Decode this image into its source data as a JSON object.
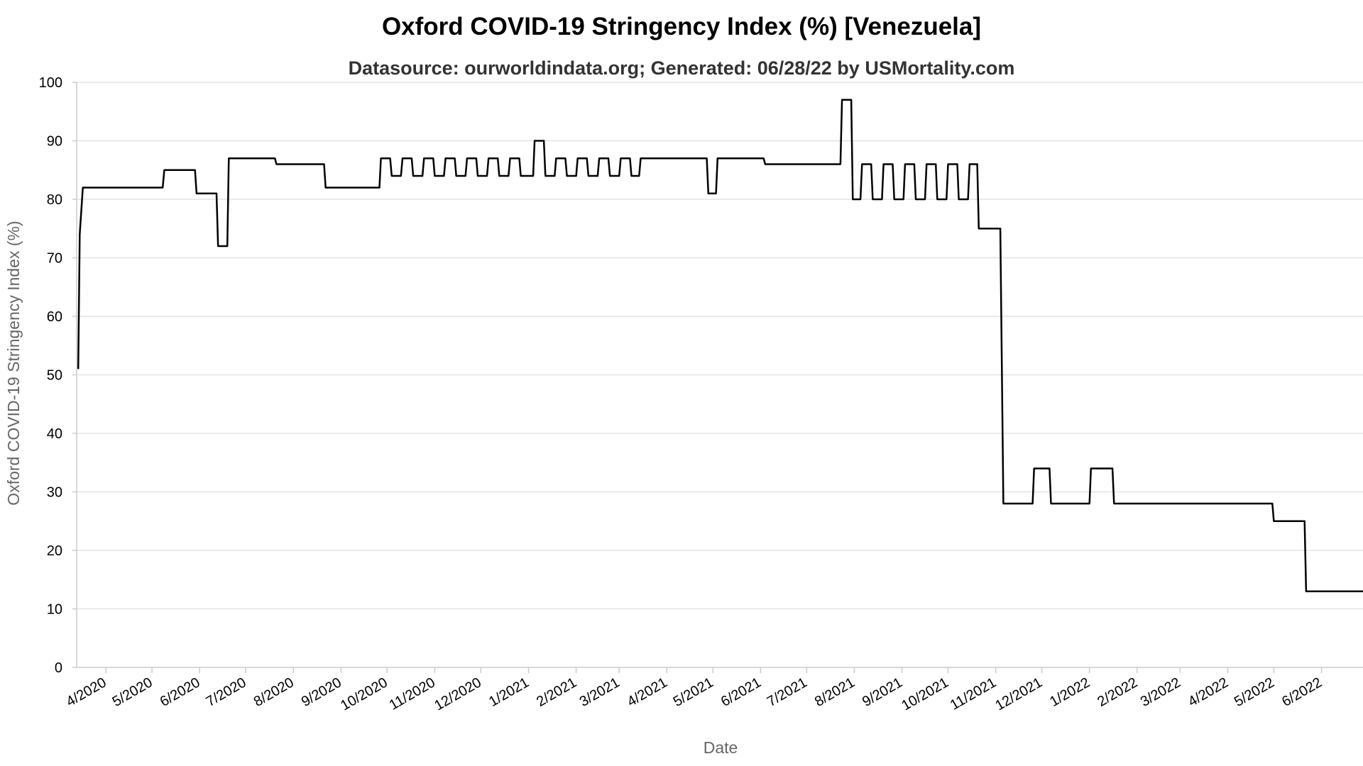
{
  "chart_data": {
    "type": "line",
    "title": "Oxford COVID-19 Stringency Index (%) [Venezuela]",
    "subtitle": "Datasource: ourworldindata.org; Generated: 06/28/22 by USMortality.com",
    "xlabel": "Date",
    "ylabel": "Oxford COVID-19 Stringency Index (%)",
    "ylim": [
      0,
      100
    ],
    "yticks": [
      0,
      10,
      20,
      30,
      40,
      50,
      60,
      70,
      80,
      90,
      100
    ],
    "xlim": [
      "2020-03-13",
      "2022-06-28"
    ],
    "xticks": [
      {
        "date": "2020-04-01",
        "label": "4/2020"
      },
      {
        "date": "2020-05-01",
        "label": "5/2020"
      },
      {
        "date": "2020-06-01",
        "label": "6/2020"
      },
      {
        "date": "2020-07-01",
        "label": "7/2020"
      },
      {
        "date": "2020-08-01",
        "label": "8/2020"
      },
      {
        "date": "2020-09-01",
        "label": "9/2020"
      },
      {
        "date": "2020-10-01",
        "label": "10/2020"
      },
      {
        "date": "2020-11-01",
        "label": "11/2020"
      },
      {
        "date": "2020-12-01",
        "label": "12/2020"
      },
      {
        "date": "2021-01-01",
        "label": "1/2021"
      },
      {
        "date": "2021-02-01",
        "label": "2/2021"
      },
      {
        "date": "2021-03-01",
        "label": "3/2021"
      },
      {
        "date": "2021-04-01",
        "label": "4/2021"
      },
      {
        "date": "2021-05-01",
        "label": "5/2021"
      },
      {
        "date": "2021-06-01",
        "label": "6/2021"
      },
      {
        "date": "2021-07-01",
        "label": "7/2021"
      },
      {
        "date": "2021-08-01",
        "label": "8/2021"
      },
      {
        "date": "2021-09-01",
        "label": "9/2021"
      },
      {
        "date": "2021-10-01",
        "label": "10/2021"
      },
      {
        "date": "2021-11-01",
        "label": "11/2021"
      },
      {
        "date": "2021-12-01",
        "label": "12/2021"
      },
      {
        "date": "2022-01-01",
        "label": "1/2022"
      },
      {
        "date": "2022-02-01",
        "label": "2/2022"
      },
      {
        "date": "2022-03-01",
        "label": "3/2022"
      },
      {
        "date": "2022-04-01",
        "label": "4/2022"
      },
      {
        "date": "2022-05-01",
        "label": "5/2022"
      },
      {
        "date": "2022-06-01",
        "label": "6/2022"
      }
    ],
    "grid": true,
    "series": [
      {
        "color": "#000000",
        "points": [
          [
            "2020-03-14",
            51
          ],
          [
            "2020-03-15",
            74
          ],
          [
            "2020-03-17",
            82
          ],
          [
            "2020-05-08",
            82
          ],
          [
            "2020-05-09",
            85
          ],
          [
            "2020-05-29",
            85
          ],
          [
            "2020-05-30",
            81
          ],
          [
            "2020-06-12",
            81
          ],
          [
            "2020-06-13",
            72
          ],
          [
            "2020-06-19",
            72
          ],
          [
            "2020-06-20",
            87
          ],
          [
            "2020-07-20",
            87
          ],
          [
            "2020-07-21",
            86
          ],
          [
            "2020-08-21",
            86
          ],
          [
            "2020-08-22",
            82
          ],
          [
            "2020-09-26",
            82
          ],
          [
            "2020-09-27",
            87
          ],
          [
            "2020-10-03",
            87
          ],
          [
            "2020-10-04",
            84
          ],
          [
            "2020-10-10",
            84
          ],
          [
            "2020-10-11",
            87
          ],
          [
            "2020-10-17",
            87
          ],
          [
            "2020-10-18",
            84
          ],
          [
            "2020-10-24",
            84
          ],
          [
            "2020-10-25",
            87
          ],
          [
            "2020-10-31",
            87
          ],
          [
            "2020-11-01",
            84
          ],
          [
            "2020-11-07",
            84
          ],
          [
            "2020-11-08",
            87
          ],
          [
            "2020-11-14",
            87
          ],
          [
            "2020-11-15",
            84
          ],
          [
            "2020-11-21",
            84
          ],
          [
            "2020-11-22",
            87
          ],
          [
            "2020-11-28",
            87
          ],
          [
            "2020-11-29",
            84
          ],
          [
            "2020-12-05",
            84
          ],
          [
            "2020-12-06",
            87
          ],
          [
            "2020-12-12",
            87
          ],
          [
            "2020-12-13",
            84
          ],
          [
            "2020-12-19",
            84
          ],
          [
            "2020-12-20",
            87
          ],
          [
            "2020-12-26",
            87
          ],
          [
            "2020-12-27",
            84
          ],
          [
            "2021-01-04",
            84
          ],
          [
            "2021-01-05",
            90
          ],
          [
            "2021-01-11",
            90
          ],
          [
            "2021-01-12",
            84
          ],
          [
            "2021-01-18",
            84
          ],
          [
            "2021-01-19",
            87
          ],
          [
            "2021-01-25",
            87
          ],
          [
            "2021-01-26",
            84
          ],
          [
            "2021-02-01",
            84
          ],
          [
            "2021-02-02",
            87
          ],
          [
            "2021-02-08",
            87
          ],
          [
            "2021-02-09",
            84
          ],
          [
            "2021-02-15",
            84
          ],
          [
            "2021-02-16",
            87
          ],
          [
            "2021-02-22",
            87
          ],
          [
            "2021-02-23",
            84
          ],
          [
            "2021-03-01",
            84
          ],
          [
            "2021-03-02",
            87
          ],
          [
            "2021-03-08",
            87
          ],
          [
            "2021-03-09",
            84
          ],
          [
            "2021-03-14",
            84
          ],
          [
            "2021-03-15",
            87
          ],
          [
            "2021-04-27",
            87
          ],
          [
            "2021-04-28",
            81
          ],
          [
            "2021-05-03",
            81
          ],
          [
            "2021-05-04",
            87
          ],
          [
            "2021-06-03",
            87
          ],
          [
            "2021-06-04",
            86
          ],
          [
            "2021-07-23",
            86
          ],
          [
            "2021-07-24",
            97
          ],
          [
            "2021-07-30",
            97
          ],
          [
            "2021-07-31",
            80
          ],
          [
            "2021-08-05",
            80
          ],
          [
            "2021-08-06",
            86
          ],
          [
            "2021-08-12",
            86
          ],
          [
            "2021-08-13",
            80
          ],
          [
            "2021-08-19",
            80
          ],
          [
            "2021-08-20",
            86
          ],
          [
            "2021-08-26",
            86
          ],
          [
            "2021-08-27",
            80
          ],
          [
            "2021-09-02",
            80
          ],
          [
            "2021-09-03",
            86
          ],
          [
            "2021-09-09",
            86
          ],
          [
            "2021-09-10",
            80
          ],
          [
            "2021-09-16",
            80
          ],
          [
            "2021-09-17",
            86
          ],
          [
            "2021-09-23",
            86
          ],
          [
            "2021-09-24",
            80
          ],
          [
            "2021-09-30",
            80
          ],
          [
            "2021-10-01",
            86
          ],
          [
            "2021-10-07",
            86
          ],
          [
            "2021-10-08",
            80
          ],
          [
            "2021-10-14",
            80
          ],
          [
            "2021-10-15",
            86
          ],
          [
            "2021-10-20",
            86
          ],
          [
            "2021-10-21",
            75
          ],
          [
            "2021-11-04",
            75
          ],
          [
            "2021-11-06",
            28
          ],
          [
            "2021-11-25",
            28
          ],
          [
            "2021-11-26",
            34
          ],
          [
            "2021-12-06",
            34
          ],
          [
            "2021-12-07",
            28
          ],
          [
            "2022-01-01",
            28
          ],
          [
            "2022-01-02",
            34
          ],
          [
            "2022-01-16",
            34
          ],
          [
            "2022-01-17",
            28
          ],
          [
            "2022-04-30",
            28
          ],
          [
            "2022-05-01",
            25
          ],
          [
            "2022-05-21",
            25
          ],
          [
            "2022-05-22",
            13
          ],
          [
            "2022-06-28",
            13
          ]
        ]
      }
    ]
  }
}
